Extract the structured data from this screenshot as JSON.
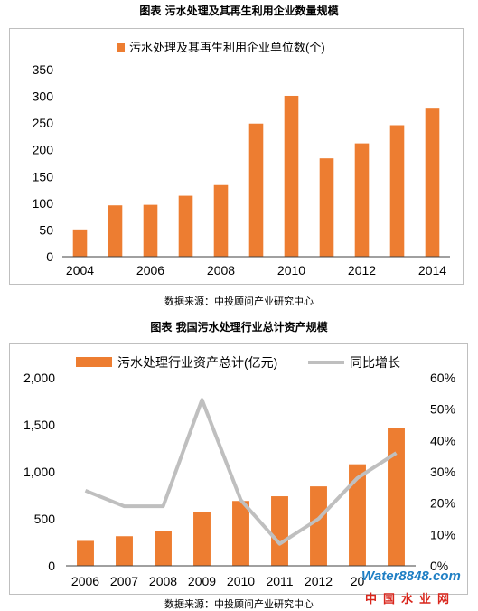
{
  "chart1": {
    "caption": "图表    污水处理及其再生利用企业数量规模",
    "source": "数据来源：中投顾问产业研究中心"
  },
  "chart2": {
    "caption": "图表    我国污水处理行业总计资产规模",
    "source": "数据来源：中投顾问产业研究中心"
  },
  "watermark": {
    "brand": "Water8848.com",
    "site": "中国水业网"
  },
  "colors": {
    "bar": "#ed7d31",
    "line": "#bfbfbf",
    "axis": "#404040",
    "frame": "#bfbfbf"
  },
  "chart_data": [
    {
      "type": "bar",
      "title": "",
      "categories": [
        "2004",
        "2005",
        "2006",
        "2007",
        "2008",
        "2009",
        "2010",
        "2011",
        "2012",
        "2013",
        "2014"
      ],
      "x_tick_labels": [
        "2004",
        "",
        "2006",
        "",
        "2008",
        "",
        "2010",
        "",
        "2012",
        "",
        "2014"
      ],
      "series": [
        {
          "name": "污水处理及其再生利用企业单位数(个)",
          "values": [
            51,
            96,
            97,
            114,
            134,
            249,
            301,
            184,
            212,
            246,
            277
          ]
        }
      ],
      "ylim": [
        0,
        350
      ],
      "yticks": [
        0,
        50,
        100,
        150,
        200,
        250,
        300,
        350
      ],
      "ytick_labels": [
        "0",
        "50",
        "100",
        "150",
        "200",
        "250",
        "300",
        "350"
      ],
      "grid": false,
      "legend": "top"
    },
    {
      "type": "bar",
      "title": "",
      "categories": [
        "2006",
        "2007",
        "2008",
        "2009",
        "2010",
        "2011",
        "2012",
        "2013",
        "2014"
      ],
      "x_tick_labels": [
        "2006",
        "2007",
        "2008",
        "2009",
        "2010",
        "2011",
        "2012",
        "20",
        ""
      ],
      "series": [
        {
          "name": "污水处理行业资产总计(亿元)",
          "type": "bar",
          "axis": "left",
          "values": [
            265,
            315,
            375,
            570,
            690,
            740,
            845,
            1080,
            1470
          ]
        },
        {
          "name": "同比增长",
          "type": "line",
          "axis": "right",
          "values": [
            0.24,
            0.19,
            0.19,
            0.53,
            0.21,
            0.07,
            0.15,
            0.28,
            0.36
          ]
        }
      ],
      "ylim": [
        0,
        2000
      ],
      "yticks": [
        0,
        500,
        1000,
        1500,
        2000
      ],
      "ytick_labels": [
        "0",
        "500",
        "1,000",
        "1,500",
        "2,000"
      ],
      "y2lim": [
        0,
        0.6
      ],
      "y2ticks": [
        0,
        0.1,
        0.2,
        0.3,
        0.4,
        0.5,
        0.6
      ],
      "y2tick_labels": [
        "0%",
        "10%",
        "20%",
        "30%",
        "40%",
        "50%",
        "60%"
      ],
      "grid": false,
      "legend": "top"
    }
  ]
}
